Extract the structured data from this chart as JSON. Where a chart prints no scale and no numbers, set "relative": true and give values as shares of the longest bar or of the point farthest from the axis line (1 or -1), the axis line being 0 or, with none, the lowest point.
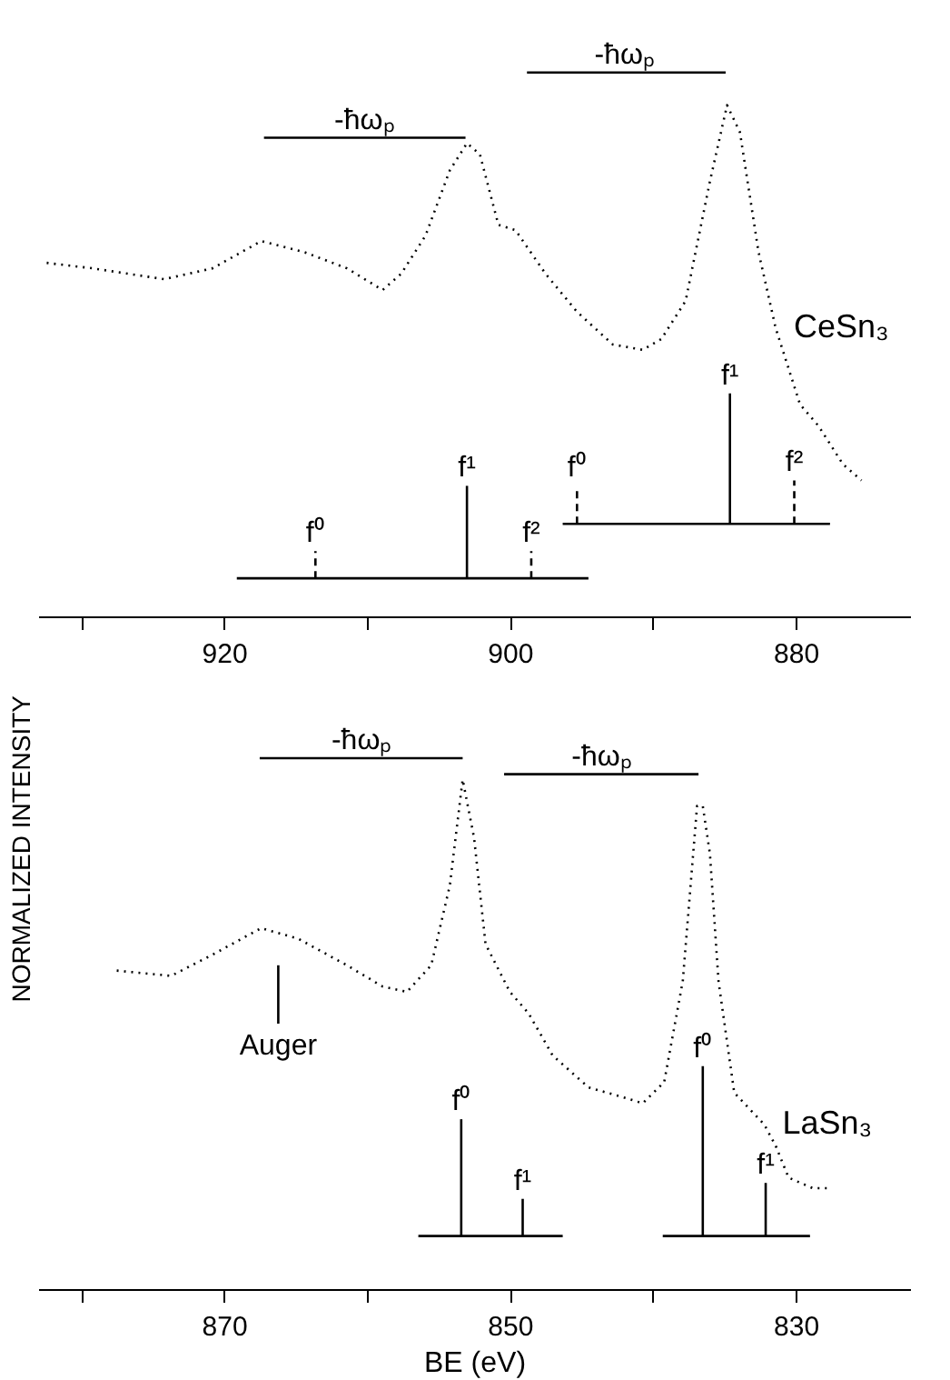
{
  "chart_data": [
    {
      "type": "line",
      "relative": true,
      "xlim": [
        933,
        872
      ],
      "xticks": [
        {
          "value": 930,
          "label": null
        },
        920,
        {
          "value": 910,
          "label": null
        },
        900,
        {
          "value": 890,
          "label": null
        },
        880
      ],
      "grid": false,
      "legend": false,
      "series": [
        {
          "name": "CeSn₃",
          "line_style": "dotted",
          "color": "#000000",
          "x": [
            932.4,
            929.2,
            924.2,
            920.8,
            917.4,
            914.4,
            911.4,
            908.9,
            907.6,
            905.9,
            904.2,
            903.0,
            902.1,
            900.8,
            899.6,
            897.5,
            895.3,
            892.8,
            890.7,
            889.4,
            887.7,
            886.0,
            884.8,
            883.9,
            882.6,
            881.4,
            879.7,
            878.4,
            876.7,
            875.4
          ],
          "values": [
            0.65,
            0.64,
            0.62,
            0.64,
            0.69,
            0.67,
            0.64,
            0.6,
            0.63,
            0.7,
            0.82,
            0.87,
            0.85,
            0.72,
            0.71,
            0.63,
            0.56,
            0.5,
            0.49,
            0.51,
            0.58,
            0.8,
            0.94,
            0.89,
            0.67,
            0.53,
            0.39,
            0.35,
            0.28,
            0.25
          ]
        },
        {
          "color": "#000000",
          "x": [
            919.1,
            894.5
          ],
          "values": [
            0.07,
            0.07
          ]
        },
        {
          "type": "line",
          "color": "#000000",
          "line_style": "dashed",
          "x": [
            913.6,
            913.6
          ],
          "values": [
            0.07,
            0.12
          ]
        },
        {
          "type": "line",
          "color": "#000000",
          "x": [
            903.0,
            903.0
          ],
          "values": [
            0.07,
            0.24
          ]
        },
        {
          "type": "line",
          "color": "#000000",
          "line_style": "dashed",
          "x": [
            898.5,
            898.5
          ],
          "values": [
            0.07,
            0.12
          ]
        },
        {
          "type": "line",
          "color": "#000000",
          "x": [
            896.3,
            877.6
          ],
          "values": [
            0.17,
            0.17
          ]
        },
        {
          "type": "line",
          "color": "#000000",
          "line_style": "dashed",
          "x": [
            895.3,
            895.3
          ],
          "values": [
            0.17,
            0.24
          ]
        },
        {
          "type": "line",
          "color": "#000000",
          "x": [
            884.6,
            884.6
          ],
          "values": [
            0.17,
            0.41
          ]
        },
        {
          "type": "line",
          "color": "#000000",
          "line_style": "dashed",
          "x": [
            880.1,
            880.1
          ],
          "values": [
            0.17,
            0.25
          ]
        },
        {
          "type": "line",
          "color": "#000000",
          "x": [
            917.2,
            903.1
          ],
          "values": [
            0.88,
            0.88
          ]
        },
        {
          "type": "line",
          "color": "#000000",
          "x": [
            898.8,
            884.9
          ],
          "values": [
            1.0,
            1.0
          ]
        }
      ],
      "annotations": [
        {
          "text": "f⁰",
          "x": 913.6,
          "y": 0.12
        },
        {
          "text": "f¹",
          "x": 903.0,
          "y": 0.24
        },
        {
          "text": "f²",
          "x": 898.5,
          "y": 0.12
        },
        {
          "text": "f⁰",
          "x": 895.3,
          "y": 0.24
        },
        {
          "text": "f¹",
          "x": 884.6,
          "y": 0.41
        },
        {
          "text": "f²",
          "x": 880.1,
          "y": 0.25
        },
        {
          "text": "-ħωₚ",
          "x": 910.2,
          "y": 0.88
        },
        {
          "text": "-ħωₚ",
          "x": 892.0,
          "y": 1.0
        }
      ]
    },
    {
      "type": "line",
      "relative": true,
      "xlim": [
        883,
        822
      ],
      "xticks": [
        {
          "value": 880,
          "label": null
        },
        870,
        {
          "value": 860,
          "label": null
        },
        850,
        {
          "value": 840,
          "label": null
        },
        830
      ],
      "xlabel": "BE    (eV)",
      "ylabel": "NORMALIZED INTENSITY",
      "grid": false,
      "legend": false,
      "series": [
        {
          "name": "LaSn₃",
          "line_style": "dotted",
          "color": "#000000",
          "x": [
            877.5,
            873.7,
            870.8,
            867.4,
            864.8,
            861.4,
            858.9,
            857.2,
            855.5,
            854.2,
            853.3,
            852.5,
            851.7,
            850.0,
            848.7,
            847.0,
            844.5,
            841.9,
            840.7,
            839.2,
            837.9,
            836.9,
            836.5,
            836.0,
            835.4,
            834.3,
            832.2,
            831.4,
            830.5,
            828.8,
            827.7
          ],
          "values": [
            0.6,
            0.59,
            0.63,
            0.68,
            0.66,
            0.61,
            0.57,
            0.56,
            0.61,
            0.76,
            0.96,
            0.85,
            0.65,
            0.56,
            0.52,
            0.44,
            0.38,
            0.36,
            0.35,
            0.39,
            0.58,
            0.91,
            0.91,
            0.82,
            0.58,
            0.37,
            0.31,
            0.27,
            0.21,
            0.19,
            0.19
          ]
        },
        {
          "color": "#000000",
          "x": [
            856.4,
            846.3
          ],
          "values": [
            0.1,
            0.1
          ]
        },
        {
          "type": "line",
          "color": "#000000",
          "x": [
            853.4,
            853.4
          ],
          "values": [
            0.1,
            0.32
          ]
        },
        {
          "type": "line",
          "color": "#000000",
          "x": [
            849.1,
            849.1
          ],
          "values": [
            0.1,
            0.17
          ]
        },
        {
          "type": "line",
          "color": "#000000",
          "x": [
            839.3,
            829.0
          ],
          "values": [
            0.1,
            0.1
          ]
        },
        {
          "type": "line",
          "color": "#000000",
          "x": [
            836.5,
            836.5
          ],
          "values": [
            0.1,
            0.42
          ]
        },
        {
          "type": "line",
          "color": "#000000",
          "x": [
            832.1,
            832.1
          ],
          "values": [
            0.1,
            0.2
          ]
        },
        {
          "type": "line",
          "color": "#000000",
          "x": [
            867.5,
            853.3
          ],
          "values": [
            1.0,
            1.0
          ]
        },
        {
          "type": "line",
          "color": "#000000",
          "x": [
            850.4,
            836.8
          ],
          "values": [
            0.97,
            0.97
          ]
        },
        {
          "type": "line",
          "color": "#000000",
          "x": [
            866.2,
            866.2
          ],
          "values": [
            0.5,
            0.61
          ]
        }
      ],
      "annotations": [
        {
          "text": "f⁰",
          "x": 853.4,
          "y": 0.32
        },
        {
          "text": "f¹",
          "x": 849.1,
          "y": 0.17
        },
        {
          "text": "f⁰",
          "x": 836.5,
          "y": 0.42
        },
        {
          "text": "f¹",
          "x": 832.1,
          "y": 0.2
        },
        {
          "text": "-ħωₚ",
          "x": 860.4,
          "y": 1.0
        },
        {
          "text": "-ħωₚ",
          "x": 843.6,
          "y": 0.97
        },
        {
          "text": "Auger",
          "x": 866.2,
          "y": 0.5
        }
      ]
    }
  ]
}
